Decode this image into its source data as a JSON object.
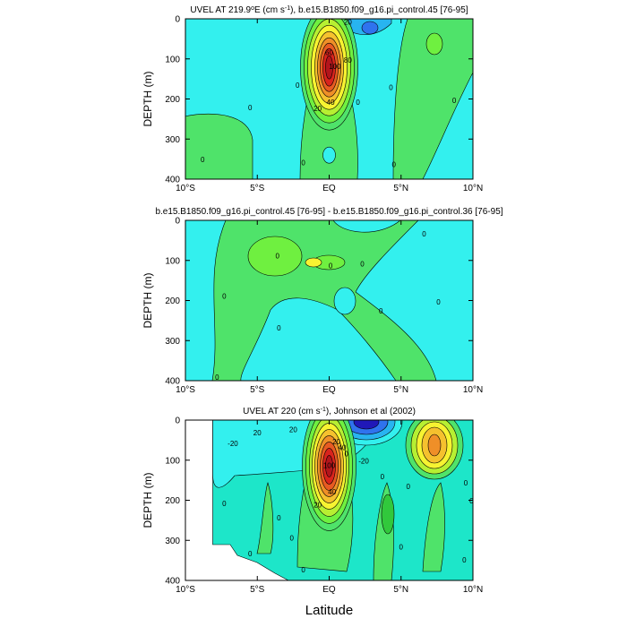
{
  "colors": {
    "cyan": "#33f0ee",
    "green_light": "#4fe36a",
    "green": "#31c83c",
    "green_bright": "#6ff040",
    "yellow_green": "#b7ef32",
    "yellow": "#f7f331",
    "orange_light": "#f5c12e",
    "orange": "#ef8f28",
    "orange_red": "#e85a22",
    "red": "#d9231d",
    "dark_red": "#b3151c",
    "blue_light": "#28b4f0",
    "blue": "#2f73ee",
    "dark_blue": "#2018b8",
    "turquoise": "#1de6c9"
  },
  "chart_data": [
    {
      "type": "contour",
      "title": "UVEL AT 219.9°E (cm s⁻¹), b.e15.B1850.f09_g16.pi_control.45 [76-95]",
      "title_parts": [
        "UVEL AT 219.9",
        "o",
        "E (cm s",
        "-1",
        "), b.e15.B1850.f09_g16.pi_control.45 [76-95]"
      ],
      "xlabel": "",
      "ylabel": "DEPTH (m)",
      "xlim": [
        -10,
        10
      ],
      "ylim": [
        400,
        0
      ],
      "x_ticks": [
        -10,
        -5,
        0,
        5,
        10
      ],
      "x_tick_labels": [
        "10°S",
        "5°S",
        "EQ",
        "5°N",
        "10°N"
      ],
      "y_ticks": [
        0,
        100,
        200,
        300,
        400
      ],
      "y_tick_labels": [
        "0",
        "100",
        "200",
        "300",
        "400"
      ],
      "contour_labels": [
        {
          "text": "20",
          "x": 1.3,
          "y": 15
        },
        {
          "text": "60",
          "x": 0.0,
          "y": 90
        },
        {
          "text": "100",
          "x": 0.4,
          "y": 125
        },
        {
          "text": "80",
          "x": 1.3,
          "y": 110
        },
        {
          "text": "40",
          "x": 0.1,
          "y": 215
        },
        {
          "text": "20",
          "x": -0.8,
          "y": 230
        },
        {
          "text": "0",
          "x": -5.5,
          "y": 228
        },
        {
          "text": "0",
          "x": -2.2,
          "y": 172
        },
        {
          "text": "0",
          "x": 4.3,
          "y": 178
        },
        {
          "text": "0",
          "x": 2.0,
          "y": 215
        },
        {
          "text": "0",
          "x": 8.7,
          "y": 210
        },
        {
          "text": "0",
          "x": -8.8,
          "y": 358
        },
        {
          "text": "0",
          "x": -1.8,
          "y": 365
        },
        {
          "text": "0",
          "x": 4.5,
          "y": 370
        }
      ]
    },
    {
      "type": "contour",
      "title": "b.e15.B1850.f09_g16.pi_control.45 [76-95] - b.e15.B1850.f09_g16.pi_control.36 [76-95]",
      "xlabel": "",
      "ylabel": "DEPTH (m)",
      "xlim": [
        -10,
        10
      ],
      "ylim": [
        400,
        0
      ],
      "x_ticks": [
        -10,
        -5,
        0,
        5,
        10
      ],
      "x_tick_labels": [
        "10°S",
        "5°S",
        "EQ",
        "5°N",
        "10°N"
      ],
      "y_ticks": [
        0,
        100,
        200,
        300,
        400
      ],
      "y_tick_labels": [
        "0",
        "100",
        "200",
        "300",
        "400"
      ],
      "contour_labels": [
        {
          "text": "0",
          "x": 6.6,
          "y": 40
        },
        {
          "text": "0",
          "x": -3.6,
          "y": 95
        },
        {
          "text": "0",
          "x": 0.1,
          "y": 120
        },
        {
          "text": "0",
          "x": 2.3,
          "y": 115
        },
        {
          "text": "0",
          "x": -7.3,
          "y": 195
        },
        {
          "text": "0",
          "x": 7.6,
          "y": 210
        },
        {
          "text": "0",
          "x": 3.6,
          "y": 232
        },
        {
          "text": "0",
          "x": -3.5,
          "y": 275
        },
        {
          "text": "0",
          "x": -7.8,
          "y": 398
        }
      ]
    },
    {
      "type": "contour",
      "title": "UVEL AT 220 (cm s⁻¹), Johnson et al (2002)",
      "title_parts": [
        "UVEL AT 220 (cm s",
        "-1",
        "), Johnson et al (2002)"
      ],
      "xlabel": "Latitude",
      "ylabel": "DEPTH (m)",
      "xlim": [
        -10,
        10
      ],
      "ylim": [
        400,
        0
      ],
      "x_ticks": [
        -10,
        -5,
        0,
        5,
        10
      ],
      "x_tick_labels": [
        "10°S",
        "5°S",
        "EQ",
        "5°N",
        "10°N"
      ],
      "y_ticks": [
        0,
        100,
        200,
        300,
        400
      ],
      "y_tick_labels": [
        "0",
        "100",
        "200",
        "300",
        "400"
      ],
      "contour_labels": [
        {
          "text": "20",
          "x": -5.0,
          "y": 38
        },
        {
          "text": "20",
          "x": -2.5,
          "y": 30
        },
        {
          "text": "-20",
          "x": -6.7,
          "y": 65
        },
        {
          "text": "20",
          "x": 0.5,
          "y": 60
        },
        {
          "text": "40",
          "x": 0.9,
          "y": 75
        },
        {
          "text": "0",
          "x": 1.2,
          "y": 90
        },
        {
          "text": "-20",
          "x": 2.4,
          "y": 108
        },
        {
          "text": "100",
          "x": 0.0,
          "y": 120
        },
        {
          "text": "40",
          "x": 0.2,
          "y": 185
        },
        {
          "text": "20",
          "x": -0.8,
          "y": 218
        },
        {
          "text": "0",
          "x": 3.7,
          "y": 148
        },
        {
          "text": "0",
          "x": 5.5,
          "y": 172
        },
        {
          "text": "0",
          "x": 9.5,
          "y": 163
        },
        {
          "text": "0",
          "x": 9.9,
          "y": 208
        },
        {
          "text": "0",
          "x": -7.3,
          "y": 215
        },
        {
          "text": "0",
          "x": -3.5,
          "y": 250
        },
        {
          "text": "0",
          "x": 5.0,
          "y": 323
        },
        {
          "text": "0",
          "x": 9.4,
          "y": 355
        },
        {
          "text": "0",
          "x": -5.5,
          "y": 340
        },
        {
          "text": "0",
          "x": -1.8,
          "y": 380
        },
        {
          "text": "0",
          "x": -2.6,
          "y": 300
        }
      ]
    }
  ]
}
